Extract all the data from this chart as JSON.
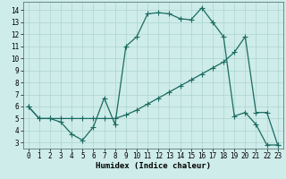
{
  "xlabel": "Humidex (Indice chaleur)",
  "bg_color": "#ceecea",
  "grid_color": "#aed4d0",
  "line_color": "#1a6b60",
  "xlim": [
    -0.5,
    23.5
  ],
  "ylim": [
    2.5,
    14.7
  ],
  "xticks": [
    0,
    1,
    2,
    3,
    4,
    5,
    6,
    7,
    8,
    9,
    10,
    11,
    12,
    13,
    14,
    15,
    16,
    17,
    18,
    19,
    20,
    21,
    22,
    23
  ],
  "yticks": [
    3,
    4,
    5,
    6,
    7,
    8,
    9,
    10,
    11,
    12,
    13,
    14
  ],
  "curve1_x": [
    0,
    1,
    2,
    3,
    4,
    5,
    6,
    7,
    8,
    9,
    10,
    11,
    12,
    13,
    14,
    15,
    16,
    17,
    18,
    19,
    20,
    21,
    22,
    23
  ],
  "curve1_y": [
    6.0,
    5.0,
    5.0,
    4.7,
    3.7,
    3.2,
    4.3,
    6.7,
    4.5,
    11.0,
    11.8,
    13.7,
    13.8,
    13.7,
    13.3,
    13.2,
    14.2,
    13.0,
    11.8,
    5.2,
    5.5,
    4.5,
    2.8,
    2.8
  ],
  "curve2_x": [
    0,
    1,
    2,
    3,
    4,
    5,
    6,
    7,
    8,
    9,
    10,
    11,
    12,
    13,
    14,
    15,
    16,
    17,
    18,
    19,
    20,
    21,
    22,
    23
  ],
  "curve2_y": [
    6.0,
    5.0,
    5.0,
    5.0,
    5.0,
    5.0,
    5.0,
    5.0,
    5.0,
    5.3,
    5.7,
    6.2,
    6.7,
    7.2,
    7.7,
    8.2,
    8.7,
    9.2,
    9.7,
    10.5,
    11.8,
    5.5,
    5.5,
    2.8
  ],
  "marker": "+",
  "markersize": 4,
  "linewidth": 0.9,
  "tick_fontsize": 5.5,
  "xlabel_fontsize": 6.5
}
